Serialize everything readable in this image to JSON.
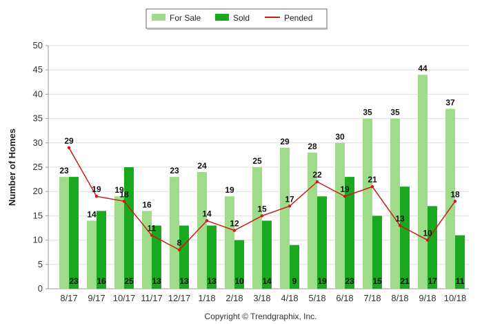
{
  "chart_data": {
    "type": "bar",
    "title": "",
    "xlabel": "",
    "ylabel": "Number of Homes",
    "ylim": [
      0,
      50
    ],
    "yticks": [
      0,
      5,
      10,
      15,
      20,
      25,
      30,
      35,
      40,
      45,
      50
    ],
    "grid": true,
    "legend_position": "top-center",
    "categories": [
      "8/17",
      "9/17",
      "10/17",
      "11/17",
      "12/17",
      "1/18",
      "2/18",
      "3/18",
      "4/18",
      "5/18",
      "6/18",
      "7/18",
      "8/18",
      "9/18",
      "10/18"
    ],
    "series": [
      {
        "name": "For Sale",
        "kind": "bar",
        "color": "#9edc8a",
        "values": [
          23,
          14,
          19,
          16,
          23,
          24,
          19,
          25,
          29,
          28,
          30,
          35,
          35,
          44,
          37
        ]
      },
      {
        "name": "Sold",
        "kind": "bar",
        "color": "#19a81e",
        "values": [
          23,
          16,
          25,
          13,
          13,
          13,
          10,
          14,
          9,
          19,
          23,
          15,
          21,
          17,
          11
        ]
      },
      {
        "name": "Pended",
        "kind": "line",
        "color": "#cc1a1a",
        "values": [
          29,
          19,
          18,
          11,
          8,
          14,
          12,
          15,
          17,
          22,
          19,
          21,
          13,
          10,
          18
        ]
      }
    ]
  },
  "footer": {
    "copyright": "Copyright © Trendgraphix, Inc."
  }
}
